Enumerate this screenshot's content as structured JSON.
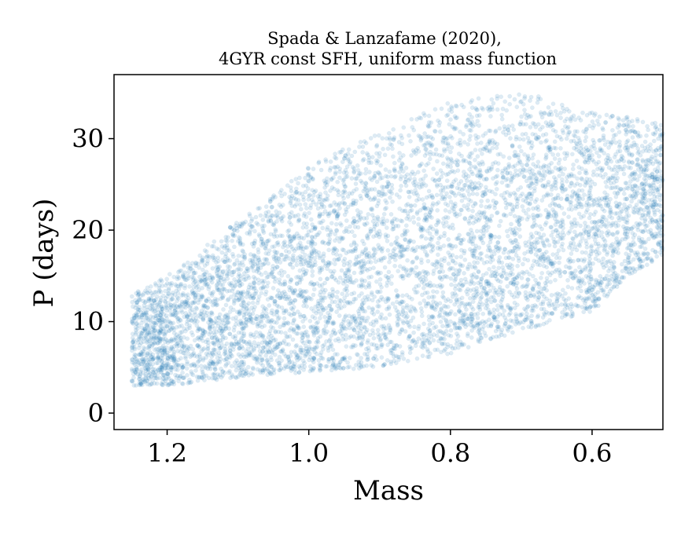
{
  "chart_data": {
    "type": "scatter",
    "title_lines": [
      "Spada & Lanzafame (2020),",
      "4GYR const SFH, uniform mass function"
    ],
    "xlabel": "Mass",
    "ylabel": "P (days)",
    "x_inverted": true,
    "xlim": [
      1.275,
      0.5
    ],
    "ylim": [
      -1.8,
      37
    ],
    "xticks": [
      1.2,
      1.0,
      0.8,
      0.6
    ],
    "xtick_labels": [
      "1.2",
      "1.0",
      "0.8",
      "0.6"
    ],
    "yticks": [
      0,
      10,
      20,
      30
    ],
    "ytick_labels": [
      "0",
      "10",
      "20",
      "30"
    ],
    "grid": false,
    "point_color": "#1f77b4",
    "point_alpha": 0.15,
    "n_points": 6500,
    "upper_envelope": [
      [
        1.25,
        13.0
      ],
      [
        1.2,
        15.0
      ],
      [
        1.1,
        21.0
      ],
      [
        1.0,
        27.0
      ],
      [
        0.9,
        31.0
      ],
      [
        0.8,
        34.0
      ],
      [
        0.72,
        35.0
      ],
      [
        0.66,
        34.5
      ],
      [
        0.62,
        33.0
      ],
      [
        0.55,
        32.5
      ],
      [
        0.5,
        32.0
      ]
    ],
    "lower_envelope": [
      [
        1.25,
        3.0
      ],
      [
        1.2,
        3.0
      ],
      [
        1.1,
        3.8
      ],
      [
        1.0,
        4.5
      ],
      [
        0.9,
        5.0
      ],
      [
        0.8,
        6.5
      ],
      [
        0.7,
        9.0
      ],
      [
        0.6,
        11.0
      ],
      [
        0.55,
        15.0
      ],
      [
        0.5,
        17.0
      ]
    ]
  }
}
